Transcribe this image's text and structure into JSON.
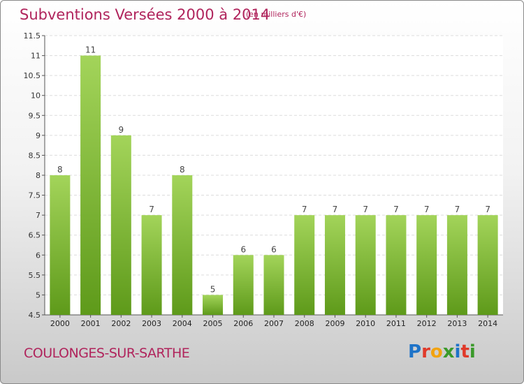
{
  "header": {
    "title": "Subventions Versées 2000 à 2014",
    "subtitle": "(en milliers d'€)"
  },
  "footer": {
    "commune": "COULONGES-SUR-SARTHE",
    "logo": "Proxiti"
  },
  "colors": {
    "title": "#b0245c",
    "bar_light": "#a3d45a",
    "bar_dark": "#5e9a1a",
    "logo_letters": [
      "#1e73c8",
      "#e03a2a",
      "#f2a30f",
      "#3a9a2a",
      "#1e73c8",
      "#e03a2a",
      "#3a9a2a"
    ]
  },
  "chart_data": {
    "type": "bar",
    "categories": [
      "2000",
      "2001",
      "2002",
      "2003",
      "2004",
      "2005",
      "2006",
      "2007",
      "2008",
      "2009",
      "2010",
      "2011",
      "2012",
      "2013",
      "2014"
    ],
    "values": [
      8,
      11,
      9,
      7,
      8,
      5,
      6,
      6,
      7,
      7,
      7,
      7,
      7,
      7,
      7
    ],
    "data_labels": [
      "8",
      "11",
      "9",
      "7",
      "8",
      "5",
      "6",
      "6",
      "7",
      "7",
      "7",
      "7",
      "7",
      "7",
      "7"
    ],
    "ylim": [
      4.5,
      11.5
    ],
    "yticks": [
      4.5,
      5,
      5.5,
      6,
      6.5,
      7,
      7.5,
      8,
      8.5,
      9,
      9.5,
      10,
      10.5,
      11,
      11.5
    ],
    "ytick_labels": [
      "4.5",
      "5",
      "5.5",
      "6",
      "6.5",
      "7",
      "7.5",
      "8",
      "8.5",
      "9",
      "9.5",
      "10",
      "10.5",
      "11",
      "11.5"
    ],
    "grid": true,
    "xlabel": "",
    "ylabel": ""
  }
}
